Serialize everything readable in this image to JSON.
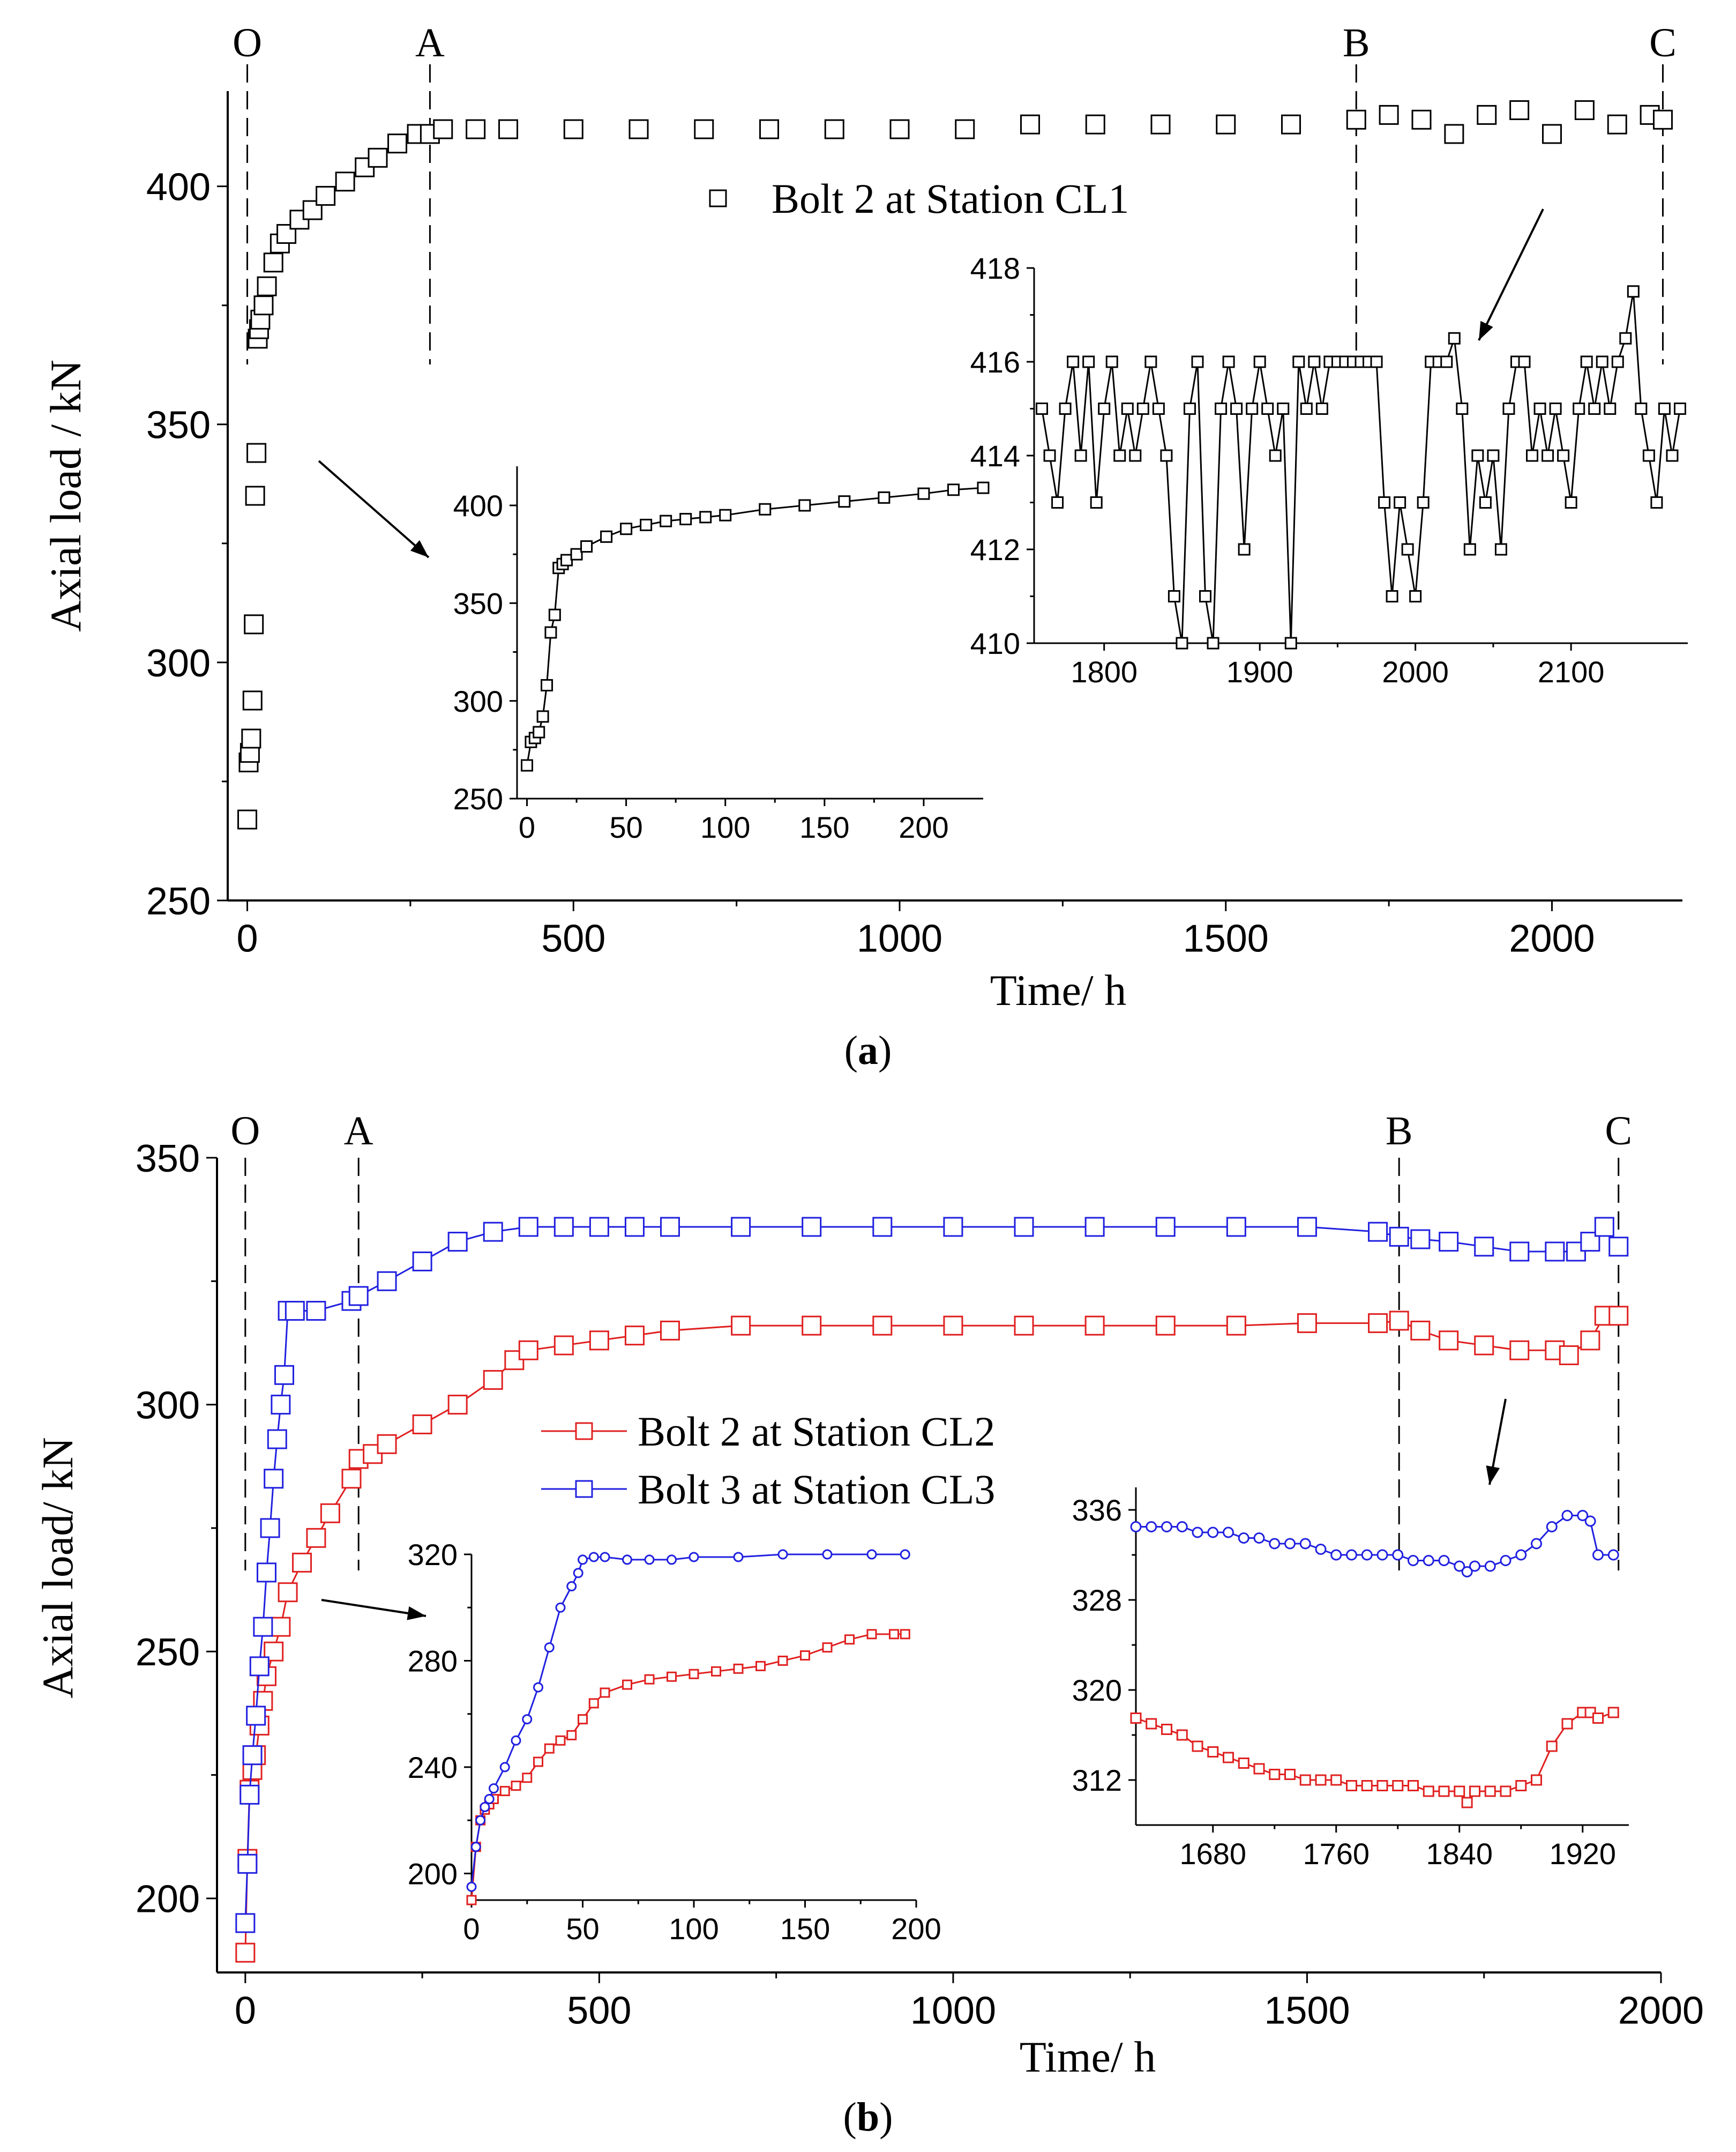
{
  "chart_data": [
    {
      "id": "a",
      "type": "scatter",
      "caption": "a",
      "xlabel": "Time/ h",
      "ylabel": "Axial load / kN",
      "xlim": [
        -30,
        2200
      ],
      "ylim": [
        250,
        420
      ],
      "xticks": [
        0,
        500,
        1000,
        1500,
        2000
      ],
      "yticks": [
        250,
        300,
        350,
        400
      ],
      "legend": [
        {
          "label": "Bolt 2 at Station CL1",
          "color": "#000000",
          "marker": "square"
        }
      ],
      "stages": [
        {
          "label": "O",
          "x": 0
        },
        {
          "label": "A",
          "x": 280
        },
        {
          "label": "B",
          "x": 1700
        },
        {
          "label": "C",
          "x": 2170
        }
      ],
      "series": [
        {
          "name": "Bolt 2 at Station CL1",
          "color": "#000000",
          "x": [
            0,
            2,
            4,
            6,
            8,
            10,
            12,
            14,
            16,
            18,
            20,
            25,
            30,
            40,
            50,
            60,
            80,
            100,
            120,
            150,
            180,
            200,
            230,
            260,
            280,
            300,
            350,
            400,
            500,
            600,
            700,
            800,
            900,
            1000,
            1100,
            1200,
            1300,
            1400,
            1500,
            1600,
            1700,
            1750,
            1800,
            1850,
            1900,
            1950,
            2000,
            2050,
            2100,
            2150,
            2170
          ],
          "y": [
            267,
            279,
            281,
            284,
            292,
            308,
            335,
            344,
            368,
            370,
            372,
            375,
            379,
            384,
            388,
            390,
            393,
            395,
            398,
            401,
            404,
            406,
            409,
            411,
            411,
            412,
            412,
            412,
            412,
            412,
            412,
            412,
            412,
            412,
            412,
            413,
            413,
            413,
            413,
            413,
            414,
            415,
            414,
            411,
            415,
            416,
            411,
            416,
            413,
            415,
            414
          ]
        }
      ],
      "insets": [
        {
          "xlim": [
            -5,
            230
          ],
          "ylim": [
            250,
            420
          ],
          "xticks": [
            0,
            50,
            100,
            150,
            200
          ],
          "yticks": [
            250,
            300,
            350,
            400
          ],
          "series": [
            {
              "name": "Bolt 2 at Station CL1",
              "color": "#000000",
              "x": [
                0,
                2,
                4,
                6,
                8,
                10,
                12,
                14,
                16,
                18,
                20,
                25,
                30,
                40,
                50,
                60,
                70,
                80,
                90,
                100,
                120,
                140,
                160,
                180,
                200,
                215,
                230
              ],
              "y": [
                267,
                279,
                281,
                284,
                292,
                308,
                335,
                344,
                368,
                370,
                372,
                375,
                379,
                384,
                388,
                390,
                392,
                393,
                394,
                395,
                398,
                400,
                402,
                404,
                406,
                408,
                409
              ]
            }
          ]
        },
        {
          "xlim": [
            1755,
            2175
          ],
          "ylim": [
            410,
            418
          ],
          "xticks": [
            1800,
            1900,
            2000,
            2100
          ],
          "yticks": [
            410,
            412,
            414,
            416,
            418
          ],
          "series": [
            {
              "name": "Bolt 2 at Station CL1",
              "color": "#000000",
              "x": [
                1760,
                1765,
                1770,
                1775,
                1780,
                1785,
                1790,
                1795,
                1800,
                1805,
                1810,
                1815,
                1820,
                1825,
                1830,
                1835,
                1840,
                1845,
                1850,
                1855,
                1860,
                1865,
                1870,
                1875,
                1880,
                1885,
                1890,
                1895,
                1900,
                1905,
                1910,
                1915,
                1920,
                1925,
                1930,
                1935,
                1940,
                1945,
                1950,
                1955,
                1960,
                1965,
                1970,
                1975,
                1980,
                1985,
                1990,
                1995,
                2000,
                2005,
                2010,
                2015,
                2020,
                2025,
                2030,
                2035,
                2040,
                2045,
                2050,
                2055,
                2060,
                2065,
                2070,
                2075,
                2080,
                2085,
                2090,
                2095,
                2100,
                2105,
                2110,
                2115,
                2120,
                2125,
                2130,
                2135,
                2140,
                2145,
                2150,
                2155,
                2160,
                2165,
                2170
              ],
              "y": [
                415,
                414,
                413,
                415,
                416,
                414,
                416,
                413,
                415,
                416,
                414,
                415,
                414,
                415,
                416,
                415,
                414,
                411,
                410,
                415,
                416,
                411,
                410,
                415,
                416,
                415,
                412,
                415,
                416,
                415,
                414,
                415,
                410,
                416,
                415,
                416,
                415,
                416,
                416,
                416,
                416,
                416,
                416,
                416,
                413,
                411,
                413,
                412,
                411,
                413,
                416,
                416,
                416,
                416.5,
                415,
                412,
                414,
                413,
                414,
                412,
                415,
                416,
                416,
                414,
                415,
                414,
                415,
                414,
                413,
                415,
                416,
                415,
                416,
                415,
                416,
                416.5,
                417.5,
                415,
                414,
                413,
                415,
                414,
                415
              ]
            }
          ]
        }
      ]
    },
    {
      "id": "b",
      "type": "line",
      "caption": "b",
      "xlabel": "Time/ h",
      "ylabel": "Axial load/ kN",
      "xlim": [
        -40,
        2000
      ],
      "ylim": [
        185,
        350
      ],
      "xticks": [
        0,
        500,
        1000,
        1500,
        2000
      ],
      "yticks": [
        200,
        250,
        300,
        350
      ],
      "legend": [
        {
          "label": "Bolt 2 at Station CL2",
          "color": "#e02020",
          "marker": "square"
        },
        {
          "label": "Bolt 3 at Station CL3",
          "color": "#2020e0",
          "marker": "square"
        }
      ],
      "stages": [
        {
          "label": "O",
          "x": 0
        },
        {
          "label": "A",
          "x": 160
        },
        {
          "label": "B",
          "x": 1630
        },
        {
          "label": "C",
          "x": 1940
        }
      ],
      "series": [
        {
          "name": "Bolt 2 at Station CL2",
          "color": "#e02020",
          "x": [
            0,
            3,
            6,
            10,
            15,
            20,
            25,
            30,
            40,
            50,
            60,
            80,
            100,
            120,
            150,
            160,
            180,
            200,
            250,
            300,
            350,
            380,
            400,
            450,
            500,
            550,
            600,
            700,
            800,
            900,
            1000,
            1100,
            1200,
            1300,
            1400,
            1500,
            1600,
            1630,
            1660,
            1700,
            1750,
            1800,
            1850,
            1870,
            1900,
            1920,
            1940
          ],
          "y": [
            189,
            208,
            222,
            226,
            229,
            235,
            240,
            245,
            250,
            255,
            262,
            268,
            273,
            278,
            285,
            289,
            290,
            292,
            296,
            300,
            305,
            309,
            311,
            312,
            313,
            314,
            315,
            316,
            316,
            316,
            316,
            316,
            316,
            316,
            316,
            316.5,
            316.5,
            317,
            315,
            313,
            312,
            311,
            311,
            310,
            313,
            318,
            318
          ]
        },
        {
          "name": "Bolt 3 at Station CL3",
          "color": "#2020e0",
          "x": [
            0,
            3,
            6,
            10,
            15,
            20,
            25,
            30,
            35,
            40,
            45,
            50,
            55,
            60,
            70,
            100,
            150,
            160,
            200,
            250,
            300,
            350,
            400,
            450,
            500,
            550,
            600,
            700,
            800,
            900,
            1000,
            1100,
            1200,
            1300,
            1400,
            1500,
            1600,
            1630,
            1660,
            1700,
            1750,
            1800,
            1850,
            1880,
            1900,
            1920,
            1940
          ],
          "y": [
            195,
            207,
            221,
            229,
            237,
            247,
            255,
            266,
            275,
            285,
            293,
            300,
            306,
            319,
            319,
            319,
            321,
            322,
            325,
            329,
            333,
            335,
            336,
            336,
            336,
            336,
            336,
            336,
            336,
            336,
            336,
            336,
            336,
            336,
            336,
            336,
            335,
            334,
            333.5,
            333,
            332,
            331,
            331,
            331,
            333,
            336,
            332
          ]
        }
      ],
      "insets": [
        {
          "xlim": [
            0,
            200
          ],
          "ylim": [
            190,
            320
          ],
          "xticks": [
            0,
            50,
            100,
            150,
            200
          ],
          "yticks": [
            200,
            240,
            280,
            320
          ],
          "series": [
            {
              "name": "Bolt 2 at Station CL2",
              "color": "#e02020",
              "x": [
                0,
                2,
                4,
                6,
                8,
                10,
                15,
                20,
                25,
                30,
                35,
                40,
                45,
                50,
                55,
                60,
                70,
                80,
                90,
                100,
                110,
                120,
                130,
                140,
                150,
                160,
                170,
                180,
                190,
                195
              ],
              "y": [
                190,
                210,
                220,
                224,
                226,
                228,
                231,
                233,
                236,
                242,
                247,
                250,
                252,
                258,
                264,
                268,
                271,
                273,
                274,
                275,
                276,
                277,
                278,
                280,
                282,
                285,
                288,
                290,
                290,
                290
              ]
            },
            {
              "name": "Bolt 3 at Station CL3",
              "color": "#2020e0",
              "x": [
                0,
                2,
                4,
                6,
                8,
                10,
                15,
                20,
                25,
                30,
                35,
                40,
                45,
                48,
                50,
                55,
                60,
                70,
                80,
                90,
                100,
                120,
                140,
                160,
                180,
                195
              ],
              "y": [
                195,
                210,
                220,
                225,
                228,
                232,
                240,
                250,
                258,
                270,
                285,
                300,
                308,
                313,
                318,
                319,
                319,
                318,
                318,
                318,
                319,
                319,
                320,
                320,
                320,
                320
              ]
            }
          ]
        },
        {
          "xlim": [
            1630,
            1950
          ],
          "ylim": [
            308,
            338
          ],
          "xticks": [
            1680,
            1760,
            1840,
            1920
          ],
          "yticks": [
            312,
            320,
            328,
            336
          ],
          "series": [
            {
              "name": "Bolt 2 at Station CL2",
              "color": "#e02020",
              "x": [
                1630,
                1640,
                1650,
                1660,
                1670,
                1680,
                1690,
                1700,
                1710,
                1720,
                1730,
                1740,
                1750,
                1760,
                1770,
                1780,
                1790,
                1800,
                1810,
                1820,
                1830,
                1840,
                1845,
                1850,
                1860,
                1870,
                1880,
                1890,
                1900,
                1910,
                1920,
                1925,
                1930,
                1940
              ],
              "y": [
                317.5,
                317,
                316.5,
                316,
                315,
                314.5,
                314,
                313.5,
                313,
                312.5,
                312.5,
                312,
                312,
                312,
                311.5,
                311.5,
                311.5,
                311.5,
                311.5,
                311,
                311,
                311,
                310,
                311,
                311,
                311,
                311.5,
                312,
                315,
                317,
                318,
                318,
                317.5,
                318
              ]
            },
            {
              "name": "Bolt 3 at Station CL3",
              "color": "#2020e0",
              "x": [
                1630,
                1640,
                1650,
                1660,
                1670,
                1680,
                1690,
                1700,
                1710,
                1720,
                1730,
                1740,
                1750,
                1760,
                1770,
                1780,
                1790,
                1800,
                1810,
                1820,
                1830,
                1840,
                1845,
                1850,
                1860,
                1870,
                1880,
                1890,
                1900,
                1910,
                1920,
                1925,
                1930,
                1940
              ],
              "y": [
                334.5,
                334.5,
                334.5,
                334.5,
                334,
                334,
                334,
                333.5,
                333.5,
                333,
                333,
                333,
                332.5,
                332,
                332,
                332,
                332,
                332,
                331.5,
                331.5,
                331.5,
                331,
                330.5,
                331,
                331,
                331.5,
                332,
                333,
                334.5,
                335.5,
                335.5,
                335,
                332,
                332
              ]
            }
          ]
        }
      ]
    }
  ]
}
